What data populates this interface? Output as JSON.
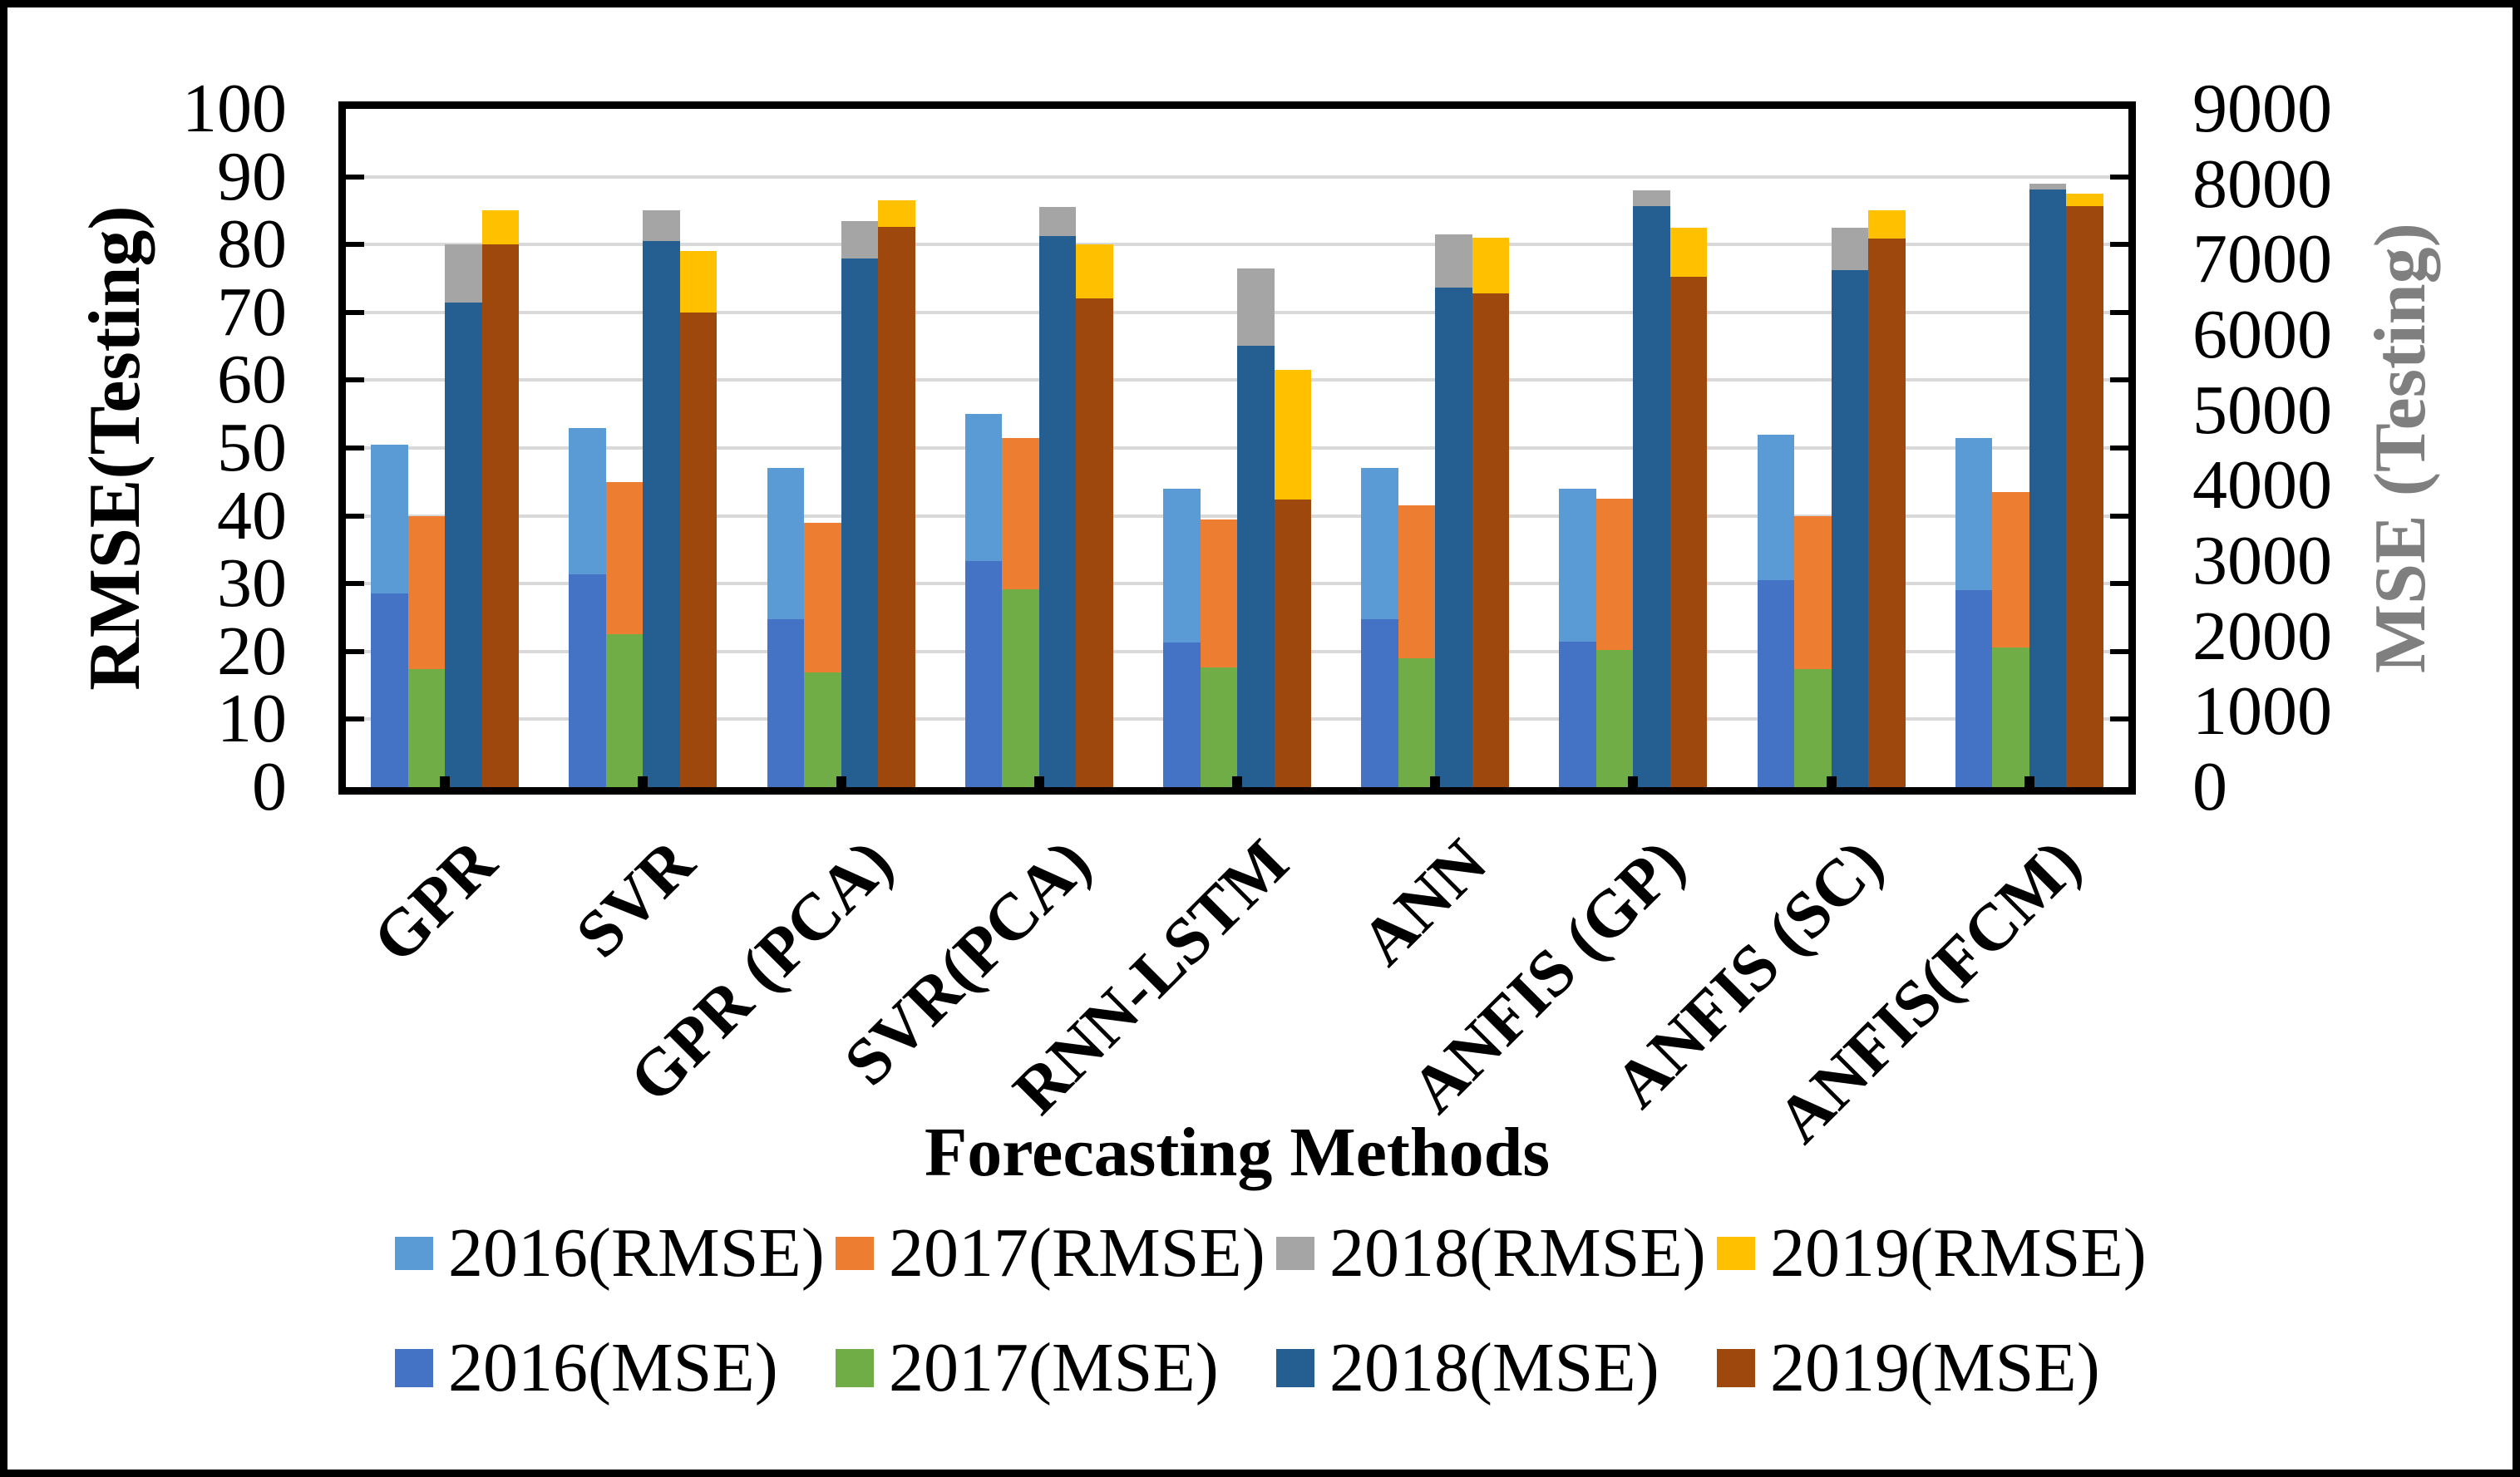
{
  "figure": {
    "x_axis_title": "Forecasting Methods",
    "left_axis_title": "RMSE(Testing)",
    "right_axis_title": "MSE (Testing)"
  },
  "chart_data": {
    "type": "bar",
    "title": "",
    "xlabel": "Forecasting Methods",
    "grid": true,
    "legend_position": "bottom",
    "pairing_note": "Each year has an RMSE bar (left axis, drawn behind) and an MSE bar (right axis, drawn in front) at the same slot",
    "left_axis": {
      "title": "RMSE(Testing)",
      "min": 0,
      "max": 100,
      "step": 10,
      "ticks": [
        0,
        10,
        20,
        30,
        40,
        50,
        60,
        70,
        80,
        90,
        100
      ]
    },
    "right_axis": {
      "title": "MSE (Testing)",
      "min": 0,
      "max": 9000,
      "step": 1000,
      "ticks": [
        0,
        1000,
        2000,
        3000,
        4000,
        5000,
        6000,
        7000,
        8000,
        9000
      ]
    },
    "categories": [
      "GPR",
      "SVR",
      "GPR (PCA)",
      "SVR(PCA)",
      "RNN-LSTM",
      "ANN",
      "ANFIS (GP)",
      "ANFIS (SC)",
      "ANFIS(FCM)"
    ],
    "series": [
      {
        "name": "2016(RMSE)",
        "axis": "left",
        "color": "#5B9BD5",
        "values": [
          50.5,
          53,
          47,
          55,
          44,
          47,
          44,
          52,
          51.5
        ]
      },
      {
        "name": "2017(RMSE)",
        "axis": "left",
        "color": "#ED7D31",
        "values": [
          40,
          45,
          39,
          51.5,
          39.5,
          41.5,
          42.5,
          40,
          43.5
        ]
      },
      {
        "name": "2018(RMSE)",
        "axis": "left",
        "color": "#A5A5A5",
        "values": [
          80,
          85,
          83.5,
          85.5,
          76.5,
          81.5,
          88,
          82.5,
          89
        ]
      },
      {
        "name": "2019(RMSE)",
        "axis": "left",
        "color": "#FFC000",
        "values": [
          85,
          79,
          86.5,
          80,
          61.5,
          81,
          82.5,
          85,
          87.5
        ]
      },
      {
        "name": "2016(MSE)",
        "axis": "right",
        "color": "#4472C4",
        "values": [
          2565,
          2825,
          2230,
          3000,
          1915,
          2225,
          1935,
          2745,
          2610
        ]
      },
      {
        "name": "2017(MSE)",
        "axis": "right",
        "color": "#70AD47",
        "values": [
          1565,
          2025,
          1520,
          2620,
          1585,
          1710,
          1820,
          1565,
          1855
        ]
      },
      {
        "name": "2018(MSE)",
        "axis": "right",
        "color": "#255E91",
        "values": [
          6430,
          7245,
          7010,
          7310,
          5860,
          6625,
          7715,
          6860,
          7930
        ]
      },
      {
        "name": "2019(MSE)",
        "axis": "right",
        "color": "#9E480E",
        "values": [
          7200,
          6300,
          7435,
          6480,
          3815,
          6550,
          6770,
          7280,
          7710
        ]
      }
    ],
    "legend_rows": [
      [
        "2016(RMSE)",
        "2017(RMSE)",
        "2018(RMSE)",
        "2019(RMSE)"
      ],
      [
        "2016(MSE)",
        "2017(MSE)",
        "2018(MSE)",
        "2019(MSE)"
      ]
    ]
  }
}
